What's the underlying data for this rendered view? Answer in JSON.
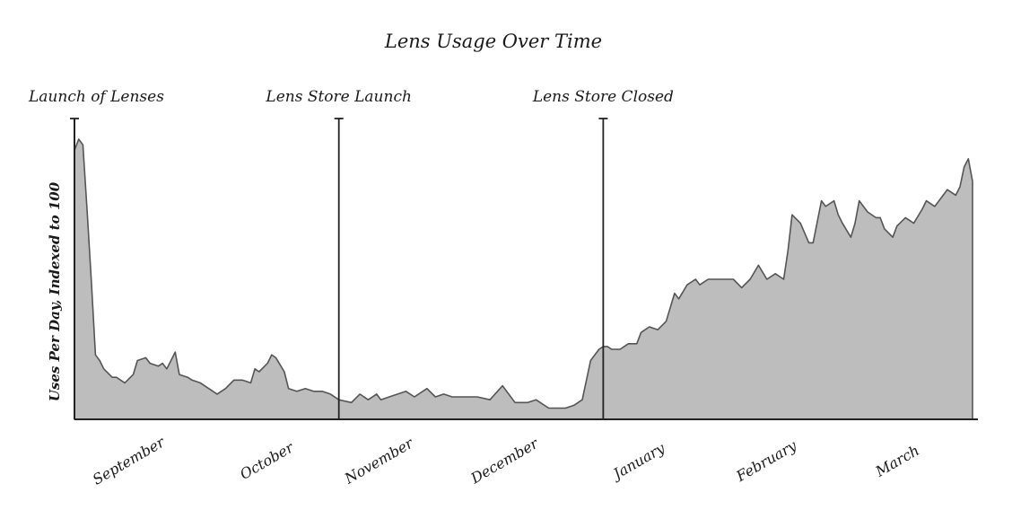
{
  "chart_data": {
    "type": "area",
    "title": "Lens Usage Over Time",
    "ylabel": "Uses Per Day, Indexed to 100",
    "xlabel": "",
    "ylim": [
      0,
      100
    ],
    "grid": false,
    "legend": "none",
    "colors": {
      "fill": "#bdbdbd",
      "stroke": "#555555",
      "axis": "#222222"
    },
    "months": [
      "September",
      "October",
      "November",
      "December",
      "January",
      "February",
      "March"
    ],
    "x_range": [
      "2012-08-25",
      "2013-03-27"
    ],
    "events": [
      {
        "label": "Launch of Lenses",
        "date": "2012-08-25"
      },
      {
        "label": "Lens Store Launch",
        "date": "2012-10-27"
      },
      {
        "label": "Lens Store Closed",
        "date": "2012-12-29"
      }
    ],
    "series": [
      {
        "x": [
          "2012-08-25",
          "2012-08-26",
          "2012-08-27",
          "2012-08-28",
          "2012-08-29",
          "2012-08-30",
          "2012-08-31",
          "2012-09-01",
          "2012-09-03",
          "2012-09-04",
          "2012-09-06",
          "2012-09-08",
          "2012-09-09",
          "2012-09-11",
          "2012-09-12",
          "2012-09-14",
          "2012-09-15",
          "2012-09-16",
          "2012-09-18",
          "2012-09-19",
          "2012-09-21",
          "2012-09-22",
          "2012-09-24",
          "2012-09-26",
          "2012-09-28",
          "2012-09-30",
          "2012-10-02",
          "2012-10-04",
          "2012-10-06",
          "2012-10-07",
          "2012-10-08",
          "2012-10-10",
          "2012-10-11",
          "2012-10-12",
          "2012-10-14",
          "2012-10-15",
          "2012-10-17",
          "2012-10-19",
          "2012-10-21",
          "2012-10-23",
          "2012-10-25",
          "2012-10-27",
          "2012-10-30",
          "2012-11-01",
          "2012-11-03",
          "2012-11-05",
          "2012-11-06",
          "2012-11-08",
          "2012-11-10",
          "2012-11-12",
          "2012-11-14",
          "2012-11-17",
          "2012-11-19",
          "2012-11-21",
          "2012-11-23",
          "2012-11-26",
          "2012-11-29",
          "2012-12-02",
          "2012-12-05",
          "2012-12-08",
          "2012-12-10",
          "2012-12-11",
          "2012-12-13",
          "2012-12-16",
          "2012-12-18",
          "2012-12-20",
          "2012-12-22",
          "2012-12-24",
          "2012-12-26",
          "2012-12-28",
          "2012-12-29",
          "2012-12-30",
          "2012-12-31",
          "2013-01-02",
          "2013-01-04",
          "2013-01-06",
          "2013-01-07",
          "2013-01-09",
          "2013-01-11",
          "2013-01-13",
          "2013-01-15",
          "2013-01-16",
          "2013-01-18",
          "2013-01-20",
          "2013-01-21",
          "2013-01-23",
          "2013-01-24",
          "2013-01-25",
          "2013-01-27",
          "2013-01-29",
          "2013-01-31",
          "2013-02-02",
          "2013-02-04",
          "2013-02-06",
          "2013-02-08",
          "2013-02-10",
          "2013-02-11",
          "2013-02-12",
          "2013-02-14",
          "2013-02-16",
          "2013-02-17",
          "2013-02-19",
          "2013-02-20",
          "2013-02-22",
          "2013-02-23",
          "2013-02-24",
          "2013-02-26",
          "2013-02-27",
          "2013-02-28",
          "2013-03-02",
          "2013-03-04",
          "2013-03-05",
          "2013-03-06",
          "2013-03-08",
          "2013-03-09",
          "2013-03-11",
          "2013-03-13",
          "2013-03-15",
          "2013-03-16",
          "2013-03-18",
          "2013-03-20",
          "2013-03-21",
          "2013-03-23",
          "2013-03-24",
          "2013-03-25",
          "2013-03-26",
          "2013-03-27"
        ],
        "values": [
          96,
          100,
          98,
          75,
          50,
          23,
          21,
          18,
          15,
          15,
          13,
          16,
          21,
          22,
          20,
          19,
          20,
          18,
          24,
          16,
          15,
          14,
          13,
          11,
          9,
          11,
          14,
          14,
          13,
          18,
          17,
          20,
          23,
          22,
          17,
          11,
          10,
          11,
          10,
          10,
          9,
          7,
          6,
          9,
          7,
          9,
          7,
          8,
          9,
          10,
          8,
          11,
          8,
          9,
          8,
          8,
          8,
          7,
          12,
          6,
          6,
          6,
          7,
          4,
          4,
          4,
          5,
          7,
          21,
          25,
          26,
          26,
          25,
          25,
          27,
          27,
          31,
          33,
          32,
          35,
          45,
          43,
          48,
          50,
          48,
          50,
          50,
          50,
          50,
          50,
          47,
          50,
          55,
          50,
          52,
          50,
          60,
          73,
          70,
          63,
          63,
          78,
          76,
          78,
          73,
          70,
          65,
          70,
          78,
          74,
          72,
          72,
          68,
          65,
          69,
          72,
          70,
          75,
          78,
          76,
          80,
          82,
          80,
          83,
          90,
          93,
          85
        ]
      }
    ]
  }
}
